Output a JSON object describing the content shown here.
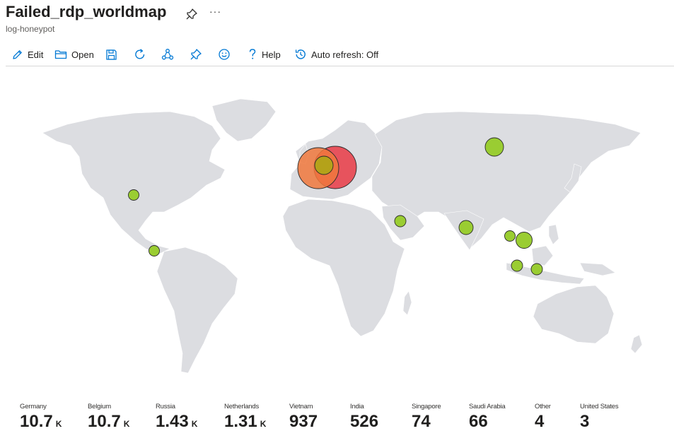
{
  "header": {
    "title": "Failed_rdp_worldmap",
    "subtitle": "log-honeypot",
    "more_label": "···"
  },
  "toolbar": {
    "edit_label": "Edit",
    "open_label": "Open",
    "help_label": "Help",
    "auto_refresh_label": "Auto refresh: Off"
  },
  "colors": {
    "accent": "#0078d4",
    "land": "#dcdde1",
    "bubble_low": "#9acd32",
    "bubble_high_red": "#e8444f",
    "bubble_high_orange": "#f0783c",
    "bubble_mid": "#b4a21a"
  },
  "map_points": [
    {
      "country": "Germany",
      "level": "high"
    },
    {
      "country": "Belgium",
      "level": "high"
    },
    {
      "country": "Russia",
      "level": "low"
    },
    {
      "country": "Netherlands",
      "level": "low"
    },
    {
      "country": "Vietnam",
      "level": "low"
    },
    {
      "country": "India",
      "level": "low"
    },
    {
      "country": "Singapore",
      "level": "low"
    },
    {
      "country": "Saudi Arabia",
      "level": "low"
    },
    {
      "country": "United States",
      "level": "low"
    }
  ],
  "stats": [
    {
      "label": "Germany",
      "value": "10.7",
      "suffix": "K"
    },
    {
      "label": "Belgium",
      "value": "10.7",
      "suffix": "K"
    },
    {
      "label": "Russia",
      "value": "1.43",
      "suffix": "K"
    },
    {
      "label": "Netherlands",
      "value": "1.31",
      "suffix": "K"
    },
    {
      "label": "Vietnam",
      "value": "937",
      "suffix": ""
    },
    {
      "label": "India",
      "value": "526",
      "suffix": ""
    },
    {
      "label": "Singapore",
      "value": "74",
      "suffix": ""
    },
    {
      "label": "Saudi Arabia",
      "value": "66",
      "suffix": ""
    },
    {
      "label": "Other",
      "value": "4",
      "suffix": ""
    },
    {
      "label": "United States",
      "value": "3",
      "suffix": ""
    }
  ]
}
